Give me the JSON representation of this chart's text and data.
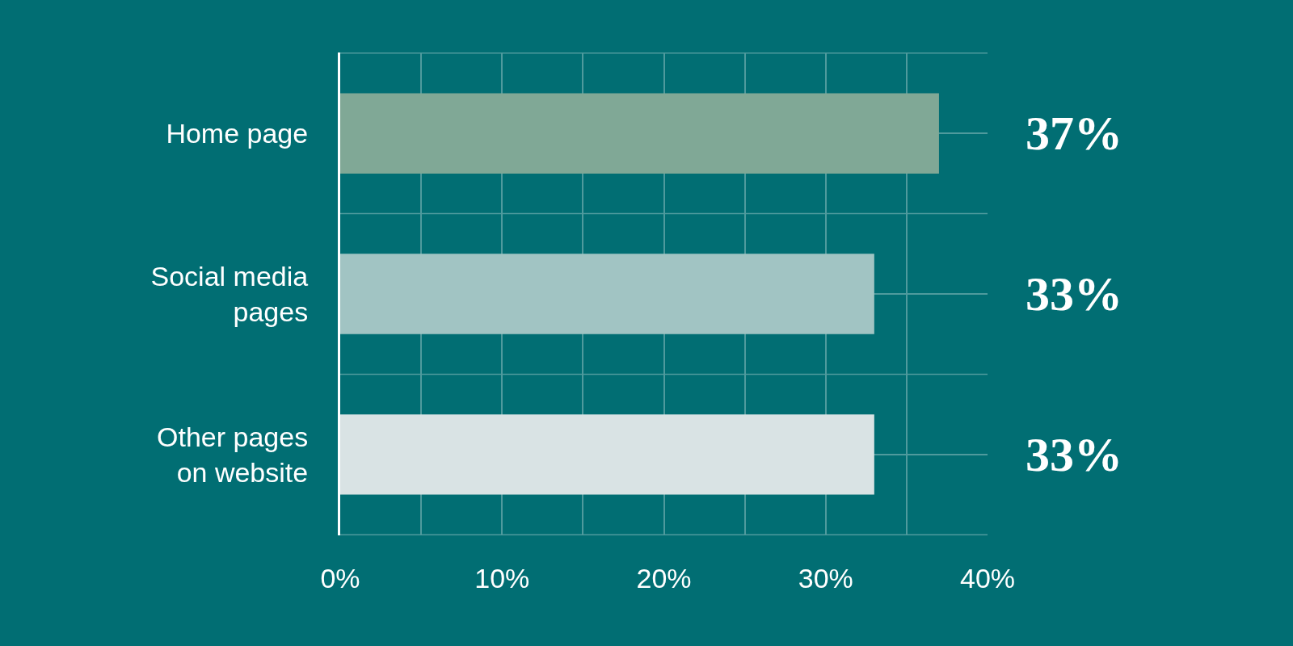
{
  "chart_data": {
    "type": "bar",
    "orientation": "horizontal",
    "categories": [
      "Home page",
      "Social media\npages",
      "Other pages\non website"
    ],
    "values": [
      37,
      33,
      33
    ],
    "colors": [
      "#80a896",
      "#a1c4c3",
      "#d9e3e4"
    ],
    "value_labels": [
      "37%",
      "33%",
      "33%"
    ],
    "xlim": [
      0,
      40
    ],
    "xticks": [
      {
        "value": 0,
        "label": "0%"
      },
      {
        "value": 5,
        "label": null
      },
      {
        "value": 10,
        "label": "10%"
      },
      {
        "value": 15,
        "label": null
      },
      {
        "value": 20,
        "label": "20%"
      },
      {
        "value": 25,
        "label": null
      },
      {
        "value": 30,
        "label": "30%"
      },
      {
        "value": 35,
        "label": null
      },
      {
        "value": 40,
        "label": "40%"
      }
    ],
    "grid": true
  }
}
